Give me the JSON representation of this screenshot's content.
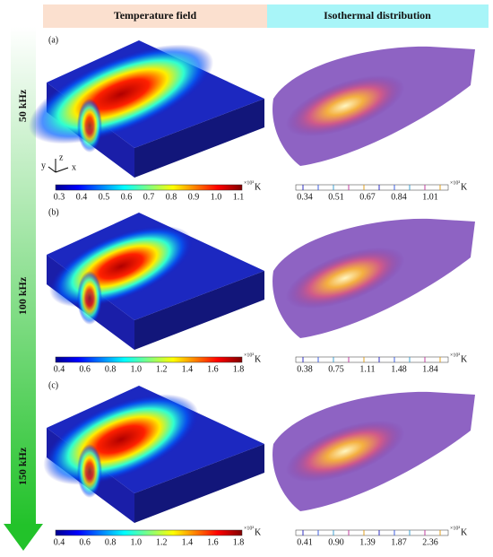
{
  "header": {
    "left": "Temperature field",
    "right": "Isothermal distribution"
  },
  "arrow_labels": [
    "50 kHz",
    "100 kHz",
    "150 kHz"
  ],
  "axes_triad": {
    "x": "x",
    "y": "y",
    "z": "z"
  },
  "panels": [
    {
      "label": "(a)",
      "temperature_bar": {
        "ticks": [
          "0.3",
          "0.4",
          "0.5",
          "0.6",
          "0.7",
          "0.8",
          "0.9",
          "1.0",
          "1.1"
        ],
        "exponent": "×10³",
        "unit": "K"
      },
      "isotherm_bar": {
        "ticks": [
          "0.34",
          "0.51",
          "0.67",
          "0.84",
          "1.01"
        ],
        "exponent": "×10³",
        "unit": "K"
      }
    },
    {
      "label": "(b)",
      "temperature_bar": {
        "ticks": [
          "0.4",
          "0.6",
          "0.8",
          "1.0",
          "1.2",
          "1.4",
          "1.6",
          "1.8"
        ],
        "exponent": "×10³",
        "unit": "K"
      },
      "isotherm_bar": {
        "ticks": [
          "0.38",
          "0.75",
          "1.11",
          "1.48",
          "1.84"
        ],
        "exponent": "×10³",
        "unit": "K"
      }
    },
    {
      "label": "(c)",
      "temperature_bar": {
        "ticks": [
          "0.4",
          "0.6",
          "0.8",
          "1.0",
          "1.2",
          "1.4",
          "1.6",
          "1.8"
        ],
        "exponent": "×10³",
        "unit": "K"
      },
      "isotherm_bar": {
        "ticks": [
          "0.41",
          "0.90",
          "1.39",
          "1.87",
          "2.36"
        ],
        "exponent": "×10³",
        "unit": "K"
      }
    }
  ]
}
